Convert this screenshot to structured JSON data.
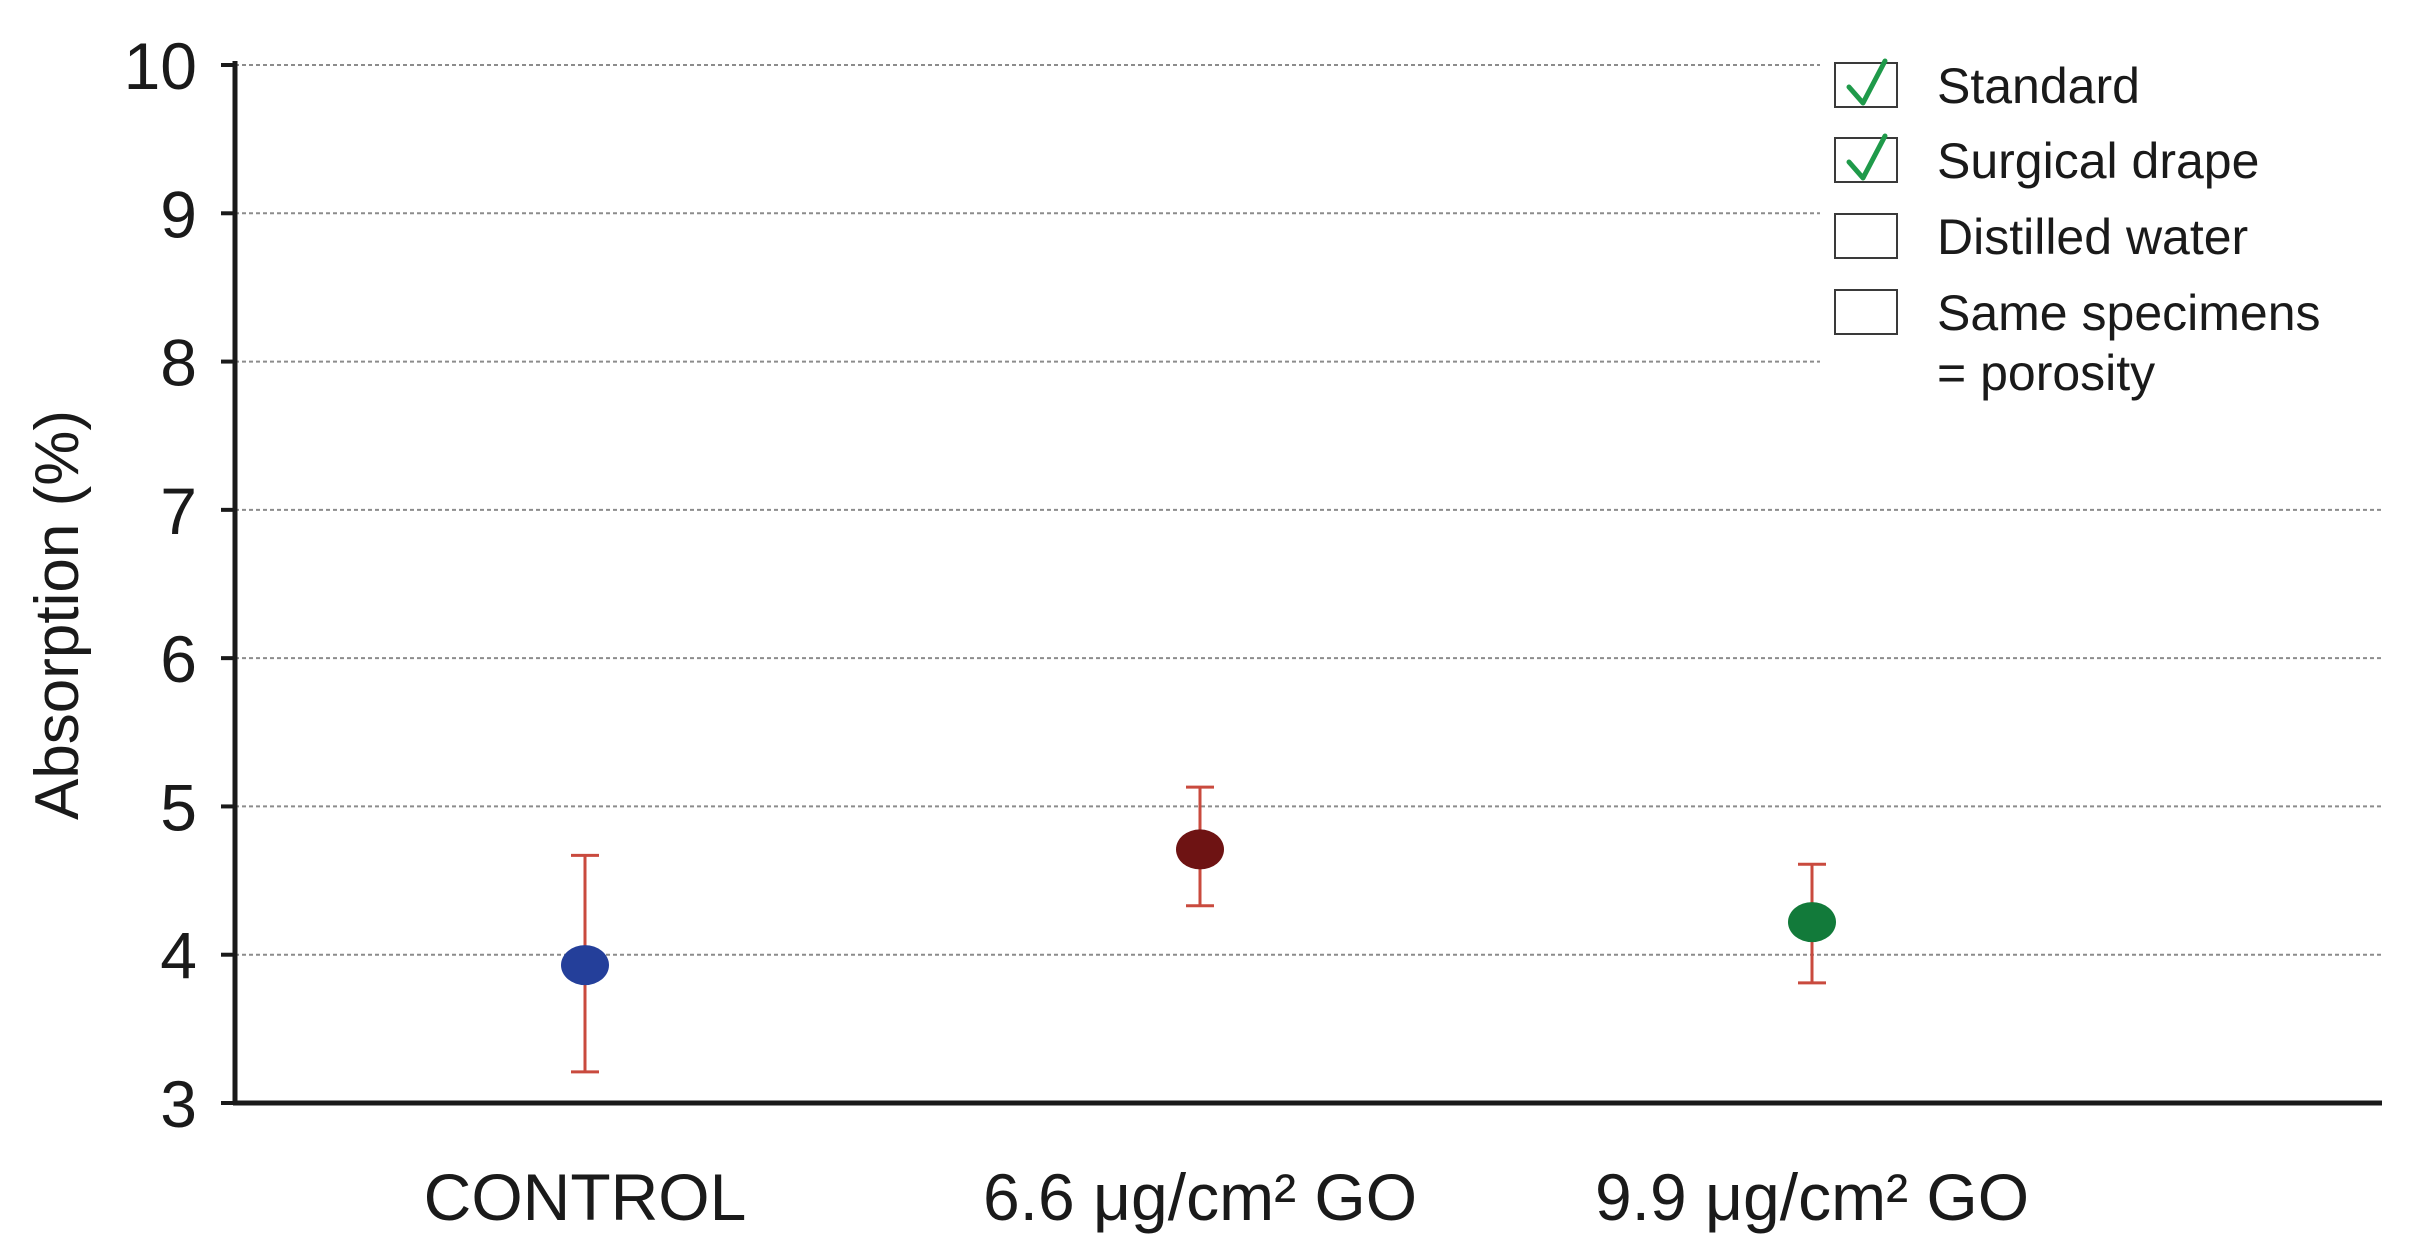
{
  "chart_data": {
    "type": "scatter",
    "title": "",
    "xlabel": "",
    "ylabel": "Absorption (%)",
    "ylim": [
      3,
      10
    ],
    "yticks": [
      "3",
      "4",
      "5",
      "6",
      "7",
      "8",
      "9",
      "10"
    ],
    "grid": true,
    "categories": [
      "CONTROL",
      "6.6 μg/cm² GO",
      "9.9 μg/cm² GO"
    ],
    "points": [
      {
        "category": "CONTROL",
        "value": 3.93,
        "error_low": 3.21,
        "error_high": 4.67,
        "color": "#243f9a"
      },
      {
        "category": "6.6 μg/cm² GO",
        "value": 4.71,
        "error_low": 4.33,
        "error_high": 5.13,
        "color": "#6e1313"
      },
      {
        "category": "9.9 μg/cm² GO",
        "value": 4.22,
        "error_low": 3.81,
        "error_high": 4.61,
        "color": "#127a3a"
      }
    ],
    "error_bar_color": "#c94a3e",
    "legend_position": "top-right",
    "legend": [
      {
        "label": "Standard",
        "checked": true
      },
      {
        "label": "Surgical drape",
        "checked": true
      },
      {
        "label": "Distilled water",
        "checked": false
      },
      {
        "label": "Same specimens",
        "label_line2": "= porosity",
        "checked": false
      }
    ],
    "check_color": "#1f9a4a"
  }
}
